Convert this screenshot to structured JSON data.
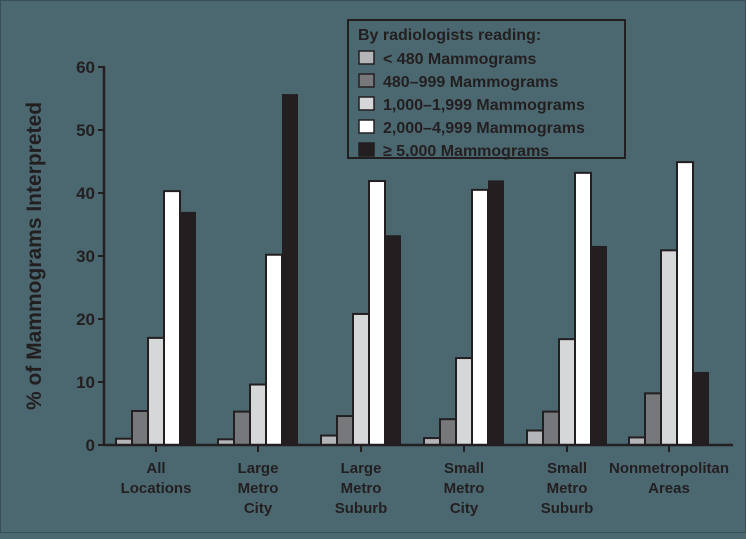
{
  "chart_data": {
    "type": "bar",
    "title": "",
    "xlabel": "",
    "ylabel": "% of Mammograms Interpreted",
    "ylim": [
      0,
      60
    ],
    "yticks": [
      0,
      10,
      20,
      30,
      40,
      50,
      60
    ],
    "grid": false,
    "legend_position": "top-right",
    "legend_title": "By radiologists reading:",
    "categories": [
      [
        "All",
        "Locations"
      ],
      [
        "Large",
        "Metro",
        "City"
      ],
      [
        "Large",
        "Metro",
        "Suburb"
      ],
      [
        "Small",
        "Metro",
        "City"
      ],
      [
        "Small",
        "Metro",
        "Suburb"
      ],
      [
        "Nonmetropolitan",
        "Areas"
      ]
    ],
    "series": [
      {
        "name": "< 480 Mammograms",
        "color": "#b3b5b8",
        "values": [
          1.0,
          0.9,
          1.5,
          1.1,
          2.3,
          1.2
        ]
      },
      {
        "name": "480–999 Mammograms",
        "color": "#77787b",
        "values": [
          5.4,
          5.3,
          4.6,
          4.1,
          5.3,
          8.2
        ]
      },
      {
        "name": "1,000–1,999 Mammograms",
        "color": "#d6d7d9",
        "values": [
          17.0,
          9.6,
          20.8,
          13.8,
          16.8,
          30.9
        ]
      },
      {
        "name": "2,000–4,999 Mammograms",
        "color": "#ffffff",
        "values": [
          40.3,
          30.2,
          41.9,
          40.5,
          43.2,
          44.9
        ]
      },
      {
        "name": "≥ 5,000 Mammograms",
        "color": "#231f20",
        "values": [
          37.0,
          55.7,
          33.3,
          42.0,
          31.6,
          11.6
        ]
      }
    ]
  }
}
